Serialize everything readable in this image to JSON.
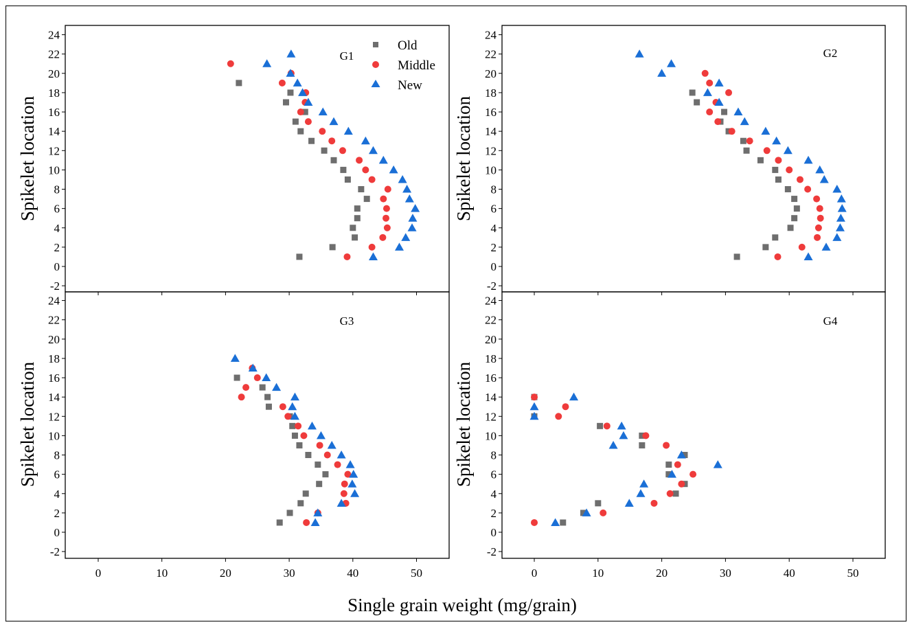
{
  "figure": {
    "xlabel": "Single grain weight (mg/grain)",
    "ylabel": "Spikelet location"
  },
  "legend": [
    {
      "name": "Old",
      "marker": "square",
      "color": "#6e6e6e"
    },
    {
      "name": "Middle",
      "marker": "circle",
      "color": "#ef3b3b"
    },
    {
      "name": "New",
      "marker": "triangle",
      "color": "#1a6fd6"
    }
  ],
  "chart_data": [
    {
      "type": "scatter",
      "panel_label": "G1",
      "xlabel": "Single grain weight (mg/grain)",
      "ylabel": "Spikelet location",
      "xlim": [
        -5,
        55
      ],
      "ylim": [
        -2.5,
        25
      ],
      "xticks": [
        "0",
        "10",
        "20",
        "30",
        "40",
        "50"
      ],
      "yticks": [
        "-2",
        "0",
        "2",
        "4",
        "6",
        "8",
        "10",
        "12",
        "14",
        "16",
        "18",
        "20",
        "22",
        "24"
      ],
      "series": [
        {
          "name": "Old",
          "points": [
            [
              22.1,
              19
            ],
            [
              30.2,
              18
            ],
            [
              29.5,
              17
            ],
            [
              32.5,
              16
            ],
            [
              31.0,
              15
            ],
            [
              31.8,
              14
            ],
            [
              33.5,
              13
            ],
            [
              35.5,
              12
            ],
            [
              37.0,
              11
            ],
            [
              38.5,
              10
            ],
            [
              39.2,
              9
            ],
            [
              41.3,
              8
            ],
            [
              42.2,
              7
            ],
            [
              40.7,
              6
            ],
            [
              40.7,
              5
            ],
            [
              40.0,
              4
            ],
            [
              40.3,
              3
            ],
            [
              36.8,
              2
            ],
            [
              31.6,
              1
            ]
          ]
        },
        {
          "name": "Middle",
          "points": [
            [
              20.8,
              21
            ],
            [
              30.3,
              20
            ],
            [
              28.9,
              19
            ],
            [
              32.6,
              18
            ],
            [
              32.5,
              17
            ],
            [
              31.8,
              16
            ],
            [
              33.0,
              15
            ],
            [
              35.2,
              14
            ],
            [
              36.7,
              13
            ],
            [
              38.4,
              12
            ],
            [
              41.0,
              11
            ],
            [
              42.0,
              10
            ],
            [
              43.0,
              9
            ],
            [
              45.5,
              8
            ],
            [
              44.8,
              7
            ],
            [
              45.3,
              6
            ],
            [
              45.2,
              5
            ],
            [
              45.4,
              4
            ],
            [
              44.7,
              3
            ],
            [
              43.0,
              2
            ],
            [
              39.1,
              1
            ]
          ]
        },
        {
          "name": "New",
          "points": [
            [
              30.3,
              22
            ],
            [
              26.5,
              21
            ],
            [
              30.2,
              20
            ],
            [
              31.3,
              19
            ],
            [
              32.1,
              18
            ],
            [
              33.0,
              17
            ],
            [
              35.3,
              16
            ],
            [
              37.0,
              15
            ],
            [
              39.3,
              14
            ],
            [
              42.0,
              13
            ],
            [
              43.2,
              12
            ],
            [
              44.8,
              11
            ],
            [
              46.4,
              10
            ],
            [
              47.8,
              9
            ],
            [
              48.5,
              8
            ],
            [
              48.9,
              7
            ],
            [
              49.8,
              6
            ],
            [
              49.4,
              5
            ],
            [
              49.3,
              4
            ],
            [
              48.3,
              3
            ],
            [
              47.3,
              2
            ],
            [
              43.2,
              1
            ]
          ]
        }
      ]
    },
    {
      "type": "scatter",
      "panel_label": "G2",
      "xlabel": "Single grain weight (mg/grain)",
      "ylabel": "Spikelet location",
      "xlim": [
        -5,
        55
      ],
      "ylim": [
        -2.5,
        25
      ],
      "xticks": [
        "0",
        "10",
        "20",
        "30",
        "40",
        "50"
      ],
      "yticks": [
        "-2",
        "0",
        "2",
        "4",
        "6",
        "8",
        "10",
        "12",
        "14",
        "16",
        "18",
        "20",
        "22",
        "24"
      ],
      "series": [
        {
          "name": "Old",
          "points": [
            [
              24.8,
              18
            ],
            [
              25.5,
              17
            ],
            [
              29.8,
              16
            ],
            [
              29.2,
              15
            ],
            [
              30.5,
              14
            ],
            [
              32.8,
              13
            ],
            [
              33.3,
              12
            ],
            [
              35.5,
              11
            ],
            [
              37.8,
              10
            ],
            [
              38.3,
              9
            ],
            [
              39.8,
              8
            ],
            [
              40.8,
              7
            ],
            [
              41.2,
              6
            ],
            [
              40.8,
              5
            ],
            [
              40.2,
              4
            ],
            [
              37.8,
              3
            ],
            [
              36.3,
              2
            ],
            [
              31.8,
              1
            ]
          ]
        },
        {
          "name": "Middle",
          "points": [
            [
              26.8,
              20
            ],
            [
              27.5,
              19
            ],
            [
              30.5,
              18
            ],
            [
              28.5,
              17
            ],
            [
              27.5,
              16
            ],
            [
              28.8,
              15
            ],
            [
              31.0,
              14
            ],
            [
              33.8,
              13
            ],
            [
              36.5,
              12
            ],
            [
              38.3,
              11
            ],
            [
              40.0,
              10
            ],
            [
              41.7,
              9
            ],
            [
              42.9,
              8
            ],
            [
              44.3,
              7
            ],
            [
              44.8,
              6
            ],
            [
              44.9,
              5
            ],
            [
              44.6,
              4
            ],
            [
              44.4,
              3
            ],
            [
              42.0,
              2
            ],
            [
              38.2,
              1
            ]
          ]
        },
        {
          "name": "New",
          "points": [
            [
              16.5,
              22
            ],
            [
              21.5,
              21
            ],
            [
              20.0,
              20
            ],
            [
              29.0,
              19
            ],
            [
              27.2,
              18
            ],
            [
              29.0,
              17
            ],
            [
              32.0,
              16
            ],
            [
              33.0,
              15
            ],
            [
              36.3,
              14
            ],
            [
              38.0,
              13
            ],
            [
              39.8,
              12
            ],
            [
              43.0,
              11
            ],
            [
              44.8,
              10
            ],
            [
              45.5,
              9
            ],
            [
              47.5,
              8
            ],
            [
              48.2,
              7
            ],
            [
              48.3,
              6
            ],
            [
              48.1,
              5
            ],
            [
              48.0,
              4
            ],
            [
              47.5,
              3
            ],
            [
              45.8,
              2
            ],
            [
              43.0,
              1
            ]
          ]
        }
      ]
    },
    {
      "type": "scatter",
      "panel_label": "G3",
      "xlabel": "Single grain weight (mg/grain)",
      "ylabel": "Spikelet location",
      "xlim": [
        -5,
        55
      ],
      "ylim": [
        -2.5,
        25
      ],
      "xticks": [
        "0",
        "10",
        "20",
        "30",
        "40",
        "50"
      ],
      "yticks": [
        "-2",
        "0",
        "2",
        "4",
        "6",
        "8",
        "10",
        "12",
        "14",
        "16",
        "18",
        "20",
        "22",
        "24"
      ],
      "series": [
        {
          "name": "Old",
          "points": [
            [
              21.8,
              16
            ],
            [
              25.8,
              15
            ],
            [
              26.6,
              14
            ],
            [
              26.8,
              13
            ],
            [
              30.1,
              12
            ],
            [
              30.5,
              11
            ],
            [
              30.9,
              10
            ],
            [
              31.6,
              9
            ],
            [
              33.0,
              8
            ],
            [
              34.5,
              7
            ],
            [
              35.7,
              6
            ],
            [
              34.7,
              5
            ],
            [
              32.6,
              4
            ],
            [
              31.8,
              3
            ],
            [
              30.1,
              2
            ],
            [
              28.5,
              1
            ]
          ]
        },
        {
          "name": "Middle",
          "points": [
            [
              24.2,
              17
            ],
            [
              25.0,
              16
            ],
            [
              23.2,
              15
            ],
            [
              22.5,
              14
            ],
            [
              29.0,
              13
            ],
            [
              29.8,
              12
            ],
            [
              31.4,
              11
            ],
            [
              32.3,
              10
            ],
            [
              34.8,
              9
            ],
            [
              36.0,
              8
            ],
            [
              37.6,
              7
            ],
            [
              39.2,
              6
            ],
            [
              38.7,
              5
            ],
            [
              38.6,
              4
            ],
            [
              38.9,
              3
            ],
            [
              34.5,
              2
            ],
            [
              32.7,
              1
            ]
          ]
        },
        {
          "name": "New",
          "points": [
            [
              21.5,
              18
            ],
            [
              24.3,
              17
            ],
            [
              26.4,
              16
            ],
            [
              28.0,
              15
            ],
            [
              30.9,
              14
            ],
            [
              30.5,
              13
            ],
            [
              30.9,
              12
            ],
            [
              33.6,
              11
            ],
            [
              35.0,
              10
            ],
            [
              36.7,
              9
            ],
            [
              38.2,
              8
            ],
            [
              39.6,
              7
            ],
            [
              40.1,
              6
            ],
            [
              39.9,
              5
            ],
            [
              40.3,
              4
            ],
            [
              38.2,
              3
            ],
            [
              34.5,
              2
            ],
            [
              34.1,
              1
            ]
          ]
        }
      ]
    },
    {
      "type": "scatter",
      "panel_label": "G4",
      "xlabel": "Single grain weight (mg/grain)",
      "ylabel": "Spikelet location",
      "xlim": [
        -5,
        55
      ],
      "ylim": [
        -2.5,
        25
      ],
      "xticks": [
        "0",
        "10",
        "20",
        "30",
        "40",
        "50"
      ],
      "yticks": [
        "-2",
        "0",
        "2",
        "4",
        "6",
        "8",
        "10",
        "12",
        "14",
        "16",
        "18",
        "20",
        "22",
        "24"
      ],
      "series": [
        {
          "name": "Old",
          "points": [
            [
              0,
              14
            ],
            [
              0,
              12
            ],
            [
              10.3,
              11
            ],
            [
              16.9,
              10
            ],
            [
              16.9,
              9
            ],
            [
              23.6,
              8
            ],
            [
              21.1,
              7
            ],
            [
              21.1,
              6
            ],
            [
              23.6,
              5
            ],
            [
              22.2,
              4
            ],
            [
              10.0,
              3
            ],
            [
              7.7,
              2
            ],
            [
              4.5,
              1
            ]
          ]
        },
        {
          "name": "Middle",
          "points": [
            [
              0,
              14
            ],
            [
              4.9,
              13
            ],
            [
              3.8,
              12
            ],
            [
              11.4,
              11
            ],
            [
              17.5,
              10
            ],
            [
              20.7,
              9
            ],
            [
              22.5,
              7
            ],
            [
              24.9,
              6
            ],
            [
              23.1,
              5
            ],
            [
              21.3,
              4
            ],
            [
              18.8,
              3
            ],
            [
              10.8,
              2
            ],
            [
              0,
              1
            ]
          ]
        },
        {
          "name": "New",
          "points": [
            [
              6.2,
              14
            ],
            [
              0,
              13
            ],
            [
              0,
              12
            ],
            [
              13.7,
              11
            ],
            [
              14.0,
              10
            ],
            [
              12.4,
              9
            ],
            [
              23.1,
              8
            ],
            [
              28.8,
              7
            ],
            [
              21.6,
              6
            ],
            [
              17.2,
              5
            ],
            [
              16.7,
              4
            ],
            [
              14.9,
              3
            ],
            [
              8.2,
              2
            ],
            [
              3.3,
              1
            ]
          ]
        }
      ]
    }
  ]
}
